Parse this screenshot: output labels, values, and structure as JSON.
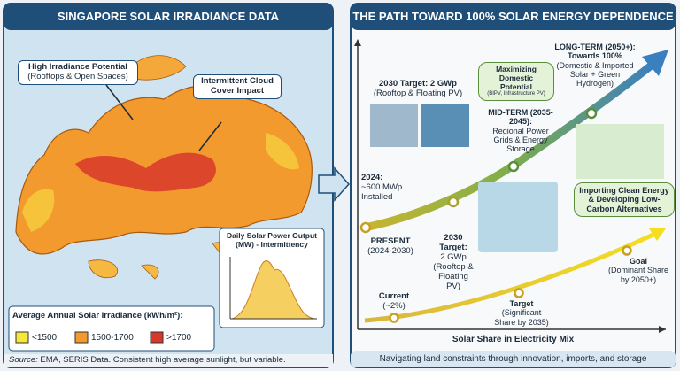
{
  "left": {
    "title": "SINGAPORE SOLAR IRRADIANCE DATA",
    "callouts": [
      {
        "title": "High Irradiance Potential",
        "subtitle": "(Rooftops & Open Spaces)"
      },
      {
        "title": "Intermittent Cloud Cover Impact"
      }
    ],
    "inset": {
      "title": "Daily Solar Power Output (MW) - Intermittency"
    },
    "legend": {
      "title": "Average Annual Solar Irradiance (kWh/m²):",
      "items": [
        "<1500",
        "1500-1700",
        ">1700"
      ]
    },
    "footer": {
      "label": "Source:",
      "text": "EMA, SERIS Data. Consistent high average sunlight, but variable."
    }
  },
  "right": {
    "title": "THE PATH TOWARD 100% SOLAR ENERGY DEPENDENCE",
    "upper": [
      {
        "title": "2030 Target: 2 GWp",
        "subtitle": "(Rooftop & Floating PV)"
      },
      {
        "title": "Maximizing Domestic Potential",
        "subtitle": "(BIPV, Infrastructure PV)"
      },
      {
        "title": "LONG-TERM (2050+): Towards 100%",
        "subtitle": "(Domestic & Imported Solar + Green Hydrogen)"
      },
      {
        "title": "MID-TERM (2035-2045):",
        "subtitle": "Regional Power Grids & Energy Storage"
      },
      {
        "title": "2024:",
        "subtitle": "~600 MWp Installed"
      },
      {
        "title": "PRESENT",
        "subtitle": "(2024-2030)"
      },
      {
        "title": "2030 Target:",
        "subtitle": "2 GWp (Rooftop & Floating PV)"
      },
      {
        "title": "Importing Clean Energy & Developing Low-Carbon Alternatives"
      }
    ],
    "lower": [
      {
        "title": "Current",
        "subtitle": "(~2%)"
      },
      {
        "title": "Target",
        "subtitle": "(Significant Share by 2035)"
      },
      {
        "title": "Goal",
        "subtitle": "(Dominant Share by 2050+)"
      }
    ],
    "axis_label": "Solar Share in Electricity Mix",
    "footer": "Navigating land constraints through innovation, imports, and storage"
  }
}
